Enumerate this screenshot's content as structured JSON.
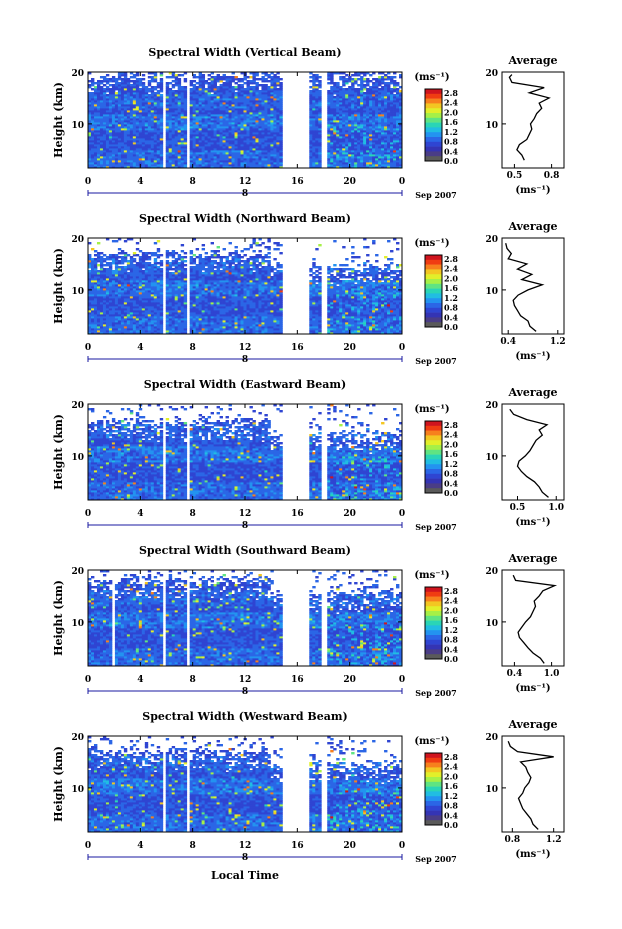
{
  "x_axis_label": "Local Time",
  "colorbar": {
    "unit": "(ms⁻¹)",
    "ticks": [
      "2.8",
      "2.4",
      "2.0",
      "1.6",
      "1.2",
      "0.8",
      "0.4",
      "0.0"
    ],
    "colors": [
      "#d0141e",
      "#f03c12",
      "#f7801d",
      "#f3c622",
      "#e2ef2a",
      "#a6f047",
      "#5fe482",
      "#2ad5b6",
      "#21bde2",
      "#2393f0",
      "#2b66e6",
      "#2f45d2",
      "#3434b4",
      "#4a3d86",
      "#5a5a5a"
    ]
  },
  "date_label": "Sep 2007",
  "date_day": "8",
  "average_title": "Average",
  "average_xlabel": "(ms⁻¹)",
  "chart_data": [
    {
      "type": "heatmap",
      "title": "Spectral Width (Vertical Beam)",
      "xlabel": "Local Time",
      "ylabel": "Height (km)",
      "xlim": [
        0,
        24
      ],
      "ylim": [
        1.5,
        20
      ],
      "xticks": [
        "0",
        "4",
        "8",
        "12",
        "16",
        "20",
        "0"
      ],
      "yticks": [
        "20",
        "10"
      ],
      "colorbar_range": [
        0.0,
        3.0
      ],
      "gaps_hours": [
        [
          5.7,
          5.9
        ],
        [
          7.6,
          7.8
        ],
        [
          14.9,
          16.8
        ],
        [
          17.9,
          18.2
        ]
      ],
      "top_km": 19.5,
      "average": {
        "type": "line",
        "xlabel": "(ms⁻¹)",
        "xticks": [
          "0.5",
          "0.8"
        ],
        "xlim": [
          0.4,
          0.9
        ],
        "height": [
          3,
          4,
          5,
          6,
          7,
          8,
          9,
          10,
          11,
          12,
          13,
          14,
          15,
          16,
          17,
          18,
          19,
          19.5
        ],
        "width": [
          0.58,
          0.56,
          0.52,
          0.54,
          0.6,
          0.62,
          0.64,
          0.63,
          0.66,
          0.68,
          0.72,
          0.7,
          0.78,
          0.62,
          0.74,
          0.48,
          0.46,
          0.48
        ]
      }
    },
    {
      "type": "heatmap",
      "title": "Spectral Width (Northward Beam)",
      "xlabel": "Local Time",
      "ylabel": "Height (km)",
      "xlim": [
        0,
        24
      ],
      "ylim": [
        1.5,
        20
      ],
      "xticks": [
        "0",
        "4",
        "8",
        "12",
        "16",
        "20",
        "0"
      ],
      "yticks": [
        "20",
        "10"
      ],
      "colorbar_range": [
        0.0,
        3.0
      ],
      "gaps_hours": [
        [
          5.7,
          5.9
        ],
        [
          7.6,
          7.8
        ],
        [
          14.9,
          16.8
        ],
        [
          17.9,
          18.2
        ]
      ],
      "top_km": 17,
      "average": {
        "type": "line",
        "xlabel": "(ms⁻¹)",
        "xticks": [
          "0.4",
          "1.2"
        ],
        "xlim": [
          0.3,
          1.3
        ],
        "height": [
          2,
          3,
          4,
          5,
          6,
          7,
          8,
          9,
          10,
          11,
          12,
          13,
          14,
          15,
          16,
          17,
          18,
          19
        ],
        "width": [
          0.85,
          0.75,
          0.72,
          0.6,
          0.55,
          0.5,
          0.48,
          0.56,
          0.72,
          0.95,
          0.62,
          0.78,
          0.55,
          0.7,
          0.4,
          0.45,
          0.38,
          0.36
        ]
      }
    },
    {
      "type": "heatmap",
      "title": "Spectral Width (Eastward Beam)",
      "xlabel": "Local Time",
      "ylabel": "Height (km)",
      "xlim": [
        0,
        24
      ],
      "ylim": [
        1.5,
        20
      ],
      "xticks": [
        "0",
        "4",
        "8",
        "12",
        "16",
        "20",
        "0"
      ],
      "yticks": [
        "20",
        "10"
      ],
      "colorbar_range": [
        0.0,
        3.0
      ],
      "gaps_hours": [
        [
          5.7,
          5.9
        ],
        [
          7.6,
          7.8
        ],
        [
          14.9,
          16.8
        ],
        [
          17.9,
          18.2
        ]
      ],
      "top_km": 16.5,
      "average": {
        "type": "line",
        "xlabel": "(ms⁻¹)",
        "xticks": [
          "0.5",
          "1.0"
        ],
        "xlim": [
          0.3,
          1.1
        ],
        "height": [
          2,
          3,
          4,
          5,
          6,
          7,
          8,
          9,
          10,
          11,
          12,
          13,
          14,
          15,
          16,
          17,
          18,
          19
        ],
        "width": [
          0.9,
          0.82,
          0.78,
          0.72,
          0.62,
          0.55,
          0.5,
          0.52,
          0.6,
          0.66,
          0.7,
          0.74,
          0.82,
          0.78,
          0.88,
          0.62,
          0.45,
          0.4
        ]
      }
    },
    {
      "type": "heatmap",
      "title": "Spectral Width (Southward Beam)",
      "xlabel": "Local Time",
      "ylabel": "Height (km)",
      "xlim": [
        0,
        24
      ],
      "ylim": [
        1.5,
        20
      ],
      "xticks": [
        "0",
        "4",
        "8",
        "12",
        "16",
        "20",
        "0"
      ],
      "yticks": [
        "20",
        "10"
      ],
      "colorbar_range": [
        0.0,
        3.0
      ],
      "gaps_hours": [
        [
          1.9,
          2.1
        ],
        [
          5.7,
          5.9
        ],
        [
          7.6,
          7.8
        ],
        [
          14.9,
          16.8
        ],
        [
          17.9,
          18.2
        ]
      ],
      "top_km": 18,
      "average": {
        "type": "line",
        "xlabel": "(ms⁻¹)",
        "xticks": [
          "0.4",
          "1.0"
        ],
        "xlim": [
          0.2,
          1.2
        ],
        "height": [
          2,
          3,
          4,
          5,
          6,
          7,
          8,
          9,
          10,
          11,
          12,
          13,
          14,
          15,
          16,
          17,
          18,
          19
        ],
        "width": [
          0.88,
          0.82,
          0.7,
          0.62,
          0.55,
          0.48,
          0.46,
          0.52,
          0.58,
          0.66,
          0.7,
          0.74,
          0.72,
          0.8,
          0.86,
          1.05,
          0.42,
          0.38
        ]
      }
    },
    {
      "type": "heatmap",
      "title": "Spectral Width (Westward Beam)",
      "xlabel": "Local Time",
      "ylabel": "Height (km)",
      "xlim": [
        0,
        24
      ],
      "ylim": [
        1.5,
        20
      ],
      "xticks": [
        "0",
        "4",
        "8",
        "12",
        "16",
        "20",
        "0"
      ],
      "yticks": [
        "20",
        "10"
      ],
      "colorbar_range": [
        0.0,
        3.0
      ],
      "gaps_hours": [
        [
          5.7,
          5.9
        ],
        [
          7.6,
          7.8
        ],
        [
          14.9,
          16.8
        ],
        [
          17.9,
          18.2
        ]
      ],
      "top_km": 17,
      "average": {
        "type": "line",
        "xlabel": "(ms⁻¹)",
        "xticks": [
          "0.8",
          "1.2"
        ],
        "xlim": [
          0.7,
          1.3
        ],
        "height": [
          2,
          3,
          4,
          5,
          6,
          7,
          8,
          9,
          10,
          11,
          12,
          13,
          14,
          15,
          16,
          17,
          18,
          19
        ],
        "width": [
          1.05,
          1.0,
          0.98,
          0.94,
          0.9,
          0.88,
          0.86,
          0.9,
          0.92,
          0.96,
          0.98,
          0.95,
          0.93,
          0.88,
          1.2,
          0.85,
          0.78,
          0.76
        ]
      }
    }
  ]
}
